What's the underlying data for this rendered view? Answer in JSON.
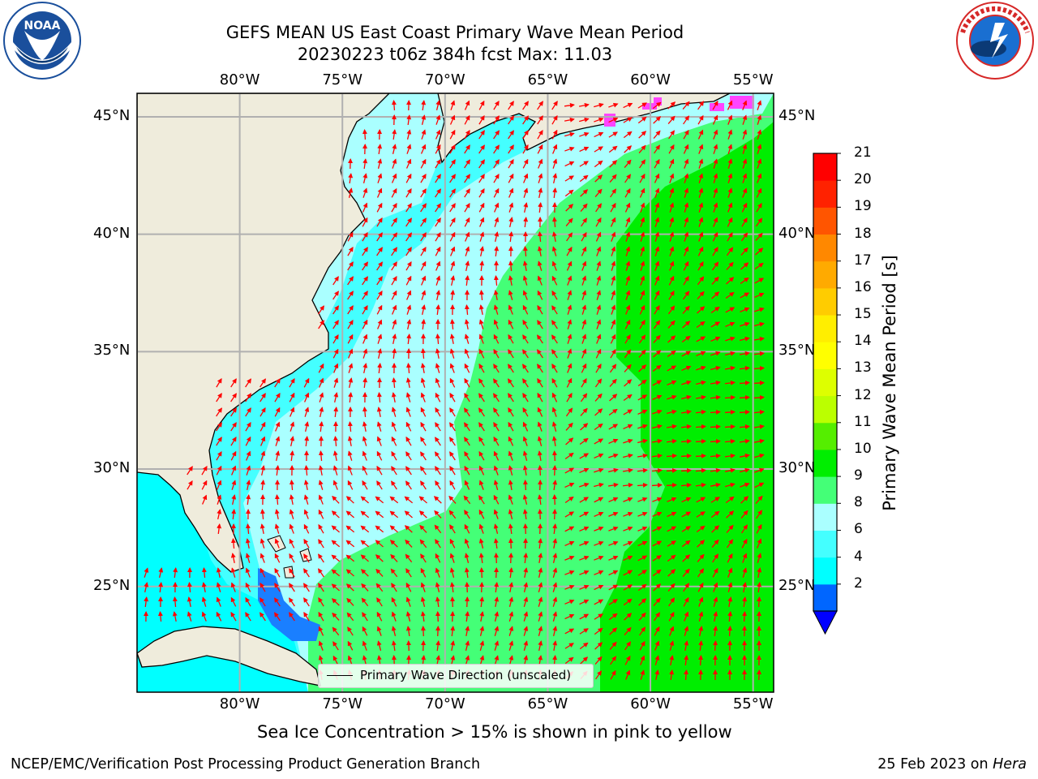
{
  "header": {
    "title_line1": "GEFS MEAN US East Coast Primary Wave Mean Period",
    "title_line2": "20230223 t06z 384h fcst   Max: 11.03"
  },
  "logos": {
    "left": {
      "name": "noaa-logo",
      "text": "NOAA",
      "ring_text": "NATIONAL OCEANIC AND ATMOSPHERIC ADMINISTRATION · U.S. DEPARTMENT OF COMMERCE",
      "colors": [
        "#1a4f9c",
        "#0b3a75",
        "#ffffff"
      ]
    },
    "right": {
      "name": "nws-logo",
      "ring_text": "NATIONAL WEATHER SERVICE",
      "colors": [
        "#d62828",
        "#1a6fd1",
        "#ffffff"
      ]
    }
  },
  "map": {
    "lon_range": [
      -85,
      -54
    ],
    "lat_range": [
      20.5,
      46
    ],
    "lon_ticks": [
      "80°W",
      "75°W",
      "70°W",
      "65°W",
      "60°W",
      "55°W"
    ],
    "lat_ticks": [
      "45°N",
      "40°N",
      "35°N",
      "30°N",
      "25°N"
    ],
    "land_color": "#efecdc",
    "grid_color": "#b0b0b0",
    "arrow_color": "#ff0000",
    "max_value": 11.03
  },
  "legend": {
    "label": "Primary Wave Direction (unscaled)"
  },
  "colorbar": {
    "label": "Primary Wave Mean Period [s]",
    "ticks": [
      "21",
      "20",
      "19",
      "18",
      "17",
      "16",
      "15",
      "14",
      "13",
      "12",
      "11",
      "10",
      "9",
      "8",
      "6",
      "4",
      "2"
    ],
    "colors": [
      "#0066ff",
      "#00ffff",
      "#44ffff",
      "#aaffff",
      "#44ff77",
      "#00ee00",
      "#55ee00",
      "#bbff00",
      "#ddff00",
      "#ffff00",
      "#ffee00",
      "#ffcc00",
      "#ffaa00",
      "#ff8800",
      "#ff5500",
      "#ff2200",
      "#ff0000"
    ],
    "extend_color": "#0000ff"
  },
  "note": "Sea Ice Concentration > 15% is shown in pink to yellow",
  "footer": {
    "left": "NCEP/EMC/Verification Post Processing Product Generation Branch",
    "right_date": "25 Feb 2023 on ",
    "right_host": "Hera"
  }
}
